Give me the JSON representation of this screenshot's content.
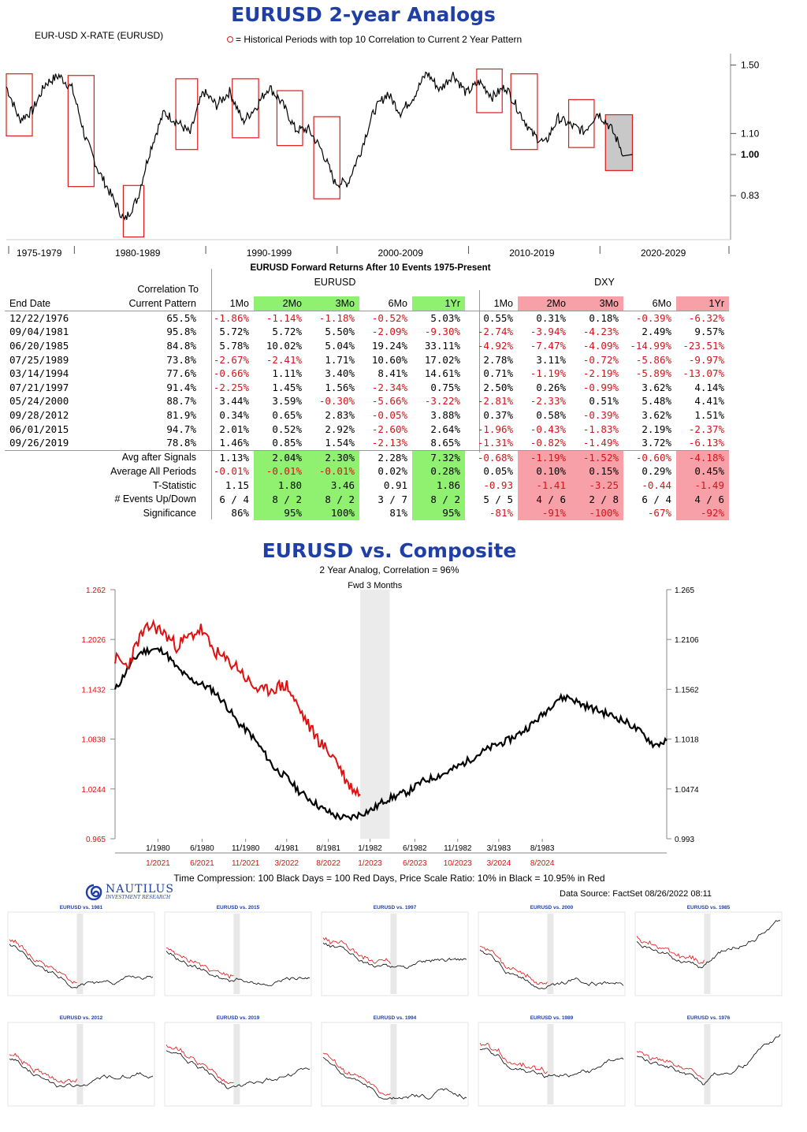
{
  "top_chart": {
    "title": "EURUSD 2-year Analogs",
    "series_label": "EUR-USD X-RATE (EURUSD)",
    "legend_text": "= Historical Periods with top 10 Correlation to Current 2 Year Pattern",
    "colors": {
      "title": "#1f3fa6",
      "box": "#e01a1a",
      "current_box_fill": "#c8c8c8"
    },
    "y_ticks": [
      "1.50",
      "1.10",
      "1.00",
      "0.83"
    ],
    "x_labels": [
      "1975-1979",
      "1980-1989",
      "1990-1999",
      "2000-2009",
      "2010-2019",
      "2020-2029"
    ]
  },
  "table": {
    "title": "EURUSD Forward Returns After 10 Events 1975-Present",
    "group1": "EURUSD",
    "group2": "DXY",
    "corr_header_1": "Correlation To",
    "corr_header_2": "Current Pattern",
    "end_date_header": "End Date",
    "periods": [
      "1Mo",
      "2Mo",
      "3Mo",
      "6Mo",
      "1Yr",
      "1Mo",
      "2Mo",
      "3Mo",
      "6Mo",
      "1Yr"
    ],
    "rows": [
      [
        "12/22/1976",
        "65.5%",
        "-1.86%",
        "-1.14%",
        "-1.18%",
        "-0.52%",
        "5.03%",
        "0.55%",
        "0.31%",
        "0.18%",
        "-0.39%",
        "-6.32%"
      ],
      [
        "09/04/1981",
        "95.8%",
        "5.72%",
        "5.72%",
        "5.50%",
        "-2.09%",
        "-9.30%",
        "-2.74%",
        "-3.94%",
        "-4.23%",
        "2.49%",
        "9.57%"
      ],
      [
        "06/20/1985",
        "84.8%",
        "5.78%",
        "10.02%",
        "5.04%",
        "19.24%",
        "33.11%",
        "-4.92%",
        "-7.47%",
        "-4.09%",
        "-14.99%",
        "-23.51%"
      ],
      [
        "07/25/1989",
        "73.8%",
        "-2.67%",
        "-2.41%",
        "1.71%",
        "10.60%",
        "17.02%",
        "2.78%",
        "3.11%",
        "-0.72%",
        "-5.86%",
        "-9.97%"
      ],
      [
        "03/14/1994",
        "77.6%",
        "-0.66%",
        "1.11%",
        "3.40%",
        "8.41%",
        "14.61%",
        "0.71%",
        "-1.19%",
        "-2.19%",
        "-5.89%",
        "-13.07%"
      ],
      [
        "07/21/1997",
        "91.4%",
        "-2.25%",
        "1.45%",
        "1.56%",
        "-2.34%",
        "0.75%",
        "2.50%",
        "0.26%",
        "-0.99%",
        "3.62%",
        "4.14%"
      ],
      [
        "05/24/2000",
        "88.7%",
        "3.44%",
        "3.59%",
        "-0.30%",
        "-5.66%",
        "-3.22%",
        "-2.81%",
        "-2.33%",
        "0.51%",
        "5.48%",
        "4.41%"
      ],
      [
        "09/28/2012",
        "81.9%",
        "0.34%",
        "0.65%",
        "2.83%",
        "-0.05%",
        "3.88%",
        "0.37%",
        "0.58%",
        "-0.39%",
        "3.62%",
        "1.51%"
      ],
      [
        "06/01/2015",
        "94.7%",
        "2.01%",
        "0.52%",
        "2.92%",
        "-2.60%",
        "2.64%",
        "-1.96%",
        "-0.43%",
        "-1.83%",
        "2.19%",
        "-2.37%"
      ],
      [
        "09/26/2019",
        "78.8%",
        "1.46%",
        "0.85%",
        "1.54%",
        "-2.13%",
        "8.65%",
        "-1.31%",
        "-0.82%",
        "-1.49%",
        "3.72%",
        "-6.13%"
      ]
    ],
    "summary": [
      {
        "label": "Avg after Signals",
        "values": [
          "1.13%",
          "2.04%",
          "2.30%",
          "2.28%",
          "7.32%",
          "-0.68%",
          "-1.19%",
          "-1.52%",
          "-0.60%",
          "-4.18%"
        ]
      },
      {
        "label": "Average All Periods",
        "values": [
          "-0.01%",
          "-0.01%",
          "-0.01%",
          "0.02%",
          "0.28%",
          "0.05%",
          "0.10%",
          "0.15%",
          "0.29%",
          "0.45%"
        ]
      },
      {
        "label": "T-Statistic",
        "values": [
          "1.15",
          "1.80",
          "3.46",
          "0.91",
          "1.86",
          "-0.93",
          "-1.41",
          "-3.25",
          "-0.44",
          "-1.49"
        ]
      },
      {
        "label": "# Events Up/Down",
        "values": [
          "6 / 4",
          "8 / 2",
          "8 / 2",
          "3 / 7",
          "8 / 2",
          "5 / 5",
          "4 / 6",
          "2 / 8",
          "6 / 4",
          "4 / 6"
        ]
      },
      {
        "label": "Significance",
        "values": [
          "86%",
          "95%",
          "100%",
          "81%",
          "95%",
          "-81%",
          "-91%",
          "-100%",
          "-67%",
          "-92%"
        ]
      }
    ],
    "colors": {
      "green": "#90f070",
      "pink": "#f7a0a8",
      "negative": "#d4141a"
    }
  },
  "composite": {
    "title": "EURUSD vs. Composite",
    "subtitle": "2 Year Analog, Correlation = 96%",
    "fwd_label": "Fwd 3 Months",
    "left_ticks": [
      "1.262",
      "1.2026",
      "1.1432",
      "1.0838",
      "1.0244",
      "0.965"
    ],
    "right_ticks": [
      "1.265",
      "1.2106",
      "1.1562",
      "1.1018",
      "1.0474",
      "0.993"
    ],
    "x_black": [
      "1/1980",
      "6/1980",
      "11/1980",
      "4/1981",
      "8/1981",
      "1/1982",
      "6/1982",
      "11/1982",
      "3/1983",
      "8/1983"
    ],
    "x_red": [
      "1/2021",
      "6/2021",
      "11/2021",
      "3/2022",
      "8/2022",
      "1/2023",
      "6/2023",
      "10/2023",
      "3/2024",
      "8/2024"
    ],
    "footer": "Time Compression: 100 Black Days = 100 Red Days,  Price Scale Ratio: 10% in Black = 10.95% in Red",
    "logo_name": "NAUTILUS",
    "logo_sub": "INVESTMENT RESEARCH",
    "source": "Data Source: FactSet    08/26/2022 08:11"
  },
  "thumbnails": [
    {
      "title": "EURUSD vs. 1981"
    },
    {
      "title": "EURUSD vs. 2015"
    },
    {
      "title": "EURUSD vs. 1997"
    },
    {
      "title": "EURUSD vs. 2000"
    },
    {
      "title": "EURUSD vs. 1985"
    },
    {
      "title": "EURUSD vs. 2012"
    },
    {
      "title": "EURUSD vs. 2019"
    },
    {
      "title": "EURUSD vs. 1994"
    },
    {
      "title": "EURUSD vs. 1989"
    },
    {
      "title": "EURUSD vs. 1976"
    }
  ],
  "chart_data": [
    {
      "type": "line",
      "title": "EURUSD 2-year Analogs",
      "series": [
        {
          "name": "EUR-USD X-RATE (EURUSD)",
          "x": [
            1975,
            1976,
            1977,
            1978,
            1979,
            1980,
            1981,
            1982,
            1983,
            1984,
            1985,
            1986,
            1987,
            1988,
            1989,
            1990,
            1991,
            1992,
            1993,
            1994,
            1995,
            1996,
            1997,
            1998,
            1999,
            2000,
            2001,
            2002,
            2003,
            2004,
            2005,
            2006,
            2007,
            2008,
            2009,
            2010,
            2011,
            2012,
            2013,
            2014,
            2015,
            2016,
            2017,
            2018,
            2019,
            2020,
            2021,
            2022
          ],
          "values": [
            1.36,
            1.17,
            1.22,
            1.38,
            1.43,
            1.35,
            1.08,
            0.93,
            0.83,
            0.74,
            0.82,
            1.03,
            1.21,
            1.16,
            1.1,
            1.33,
            1.25,
            1.33,
            1.16,
            1.24,
            1.36,
            1.26,
            1.12,
            1.12,
            1.02,
            0.88,
            0.88,
            1.02,
            1.22,
            1.32,
            1.21,
            1.3,
            1.45,
            1.34,
            1.44,
            1.32,
            1.39,
            1.3,
            1.36,
            1.22,
            1.1,
            1.05,
            1.18,
            1.14,
            1.11,
            1.21,
            1.13,
            1.0
          ]
        }
      ],
      "y_log_scale": true,
      "highlighted_periods": [
        [
          1975.0,
          1976.98
        ],
        [
          1979.7,
          1981.68
        ],
        [
          1983.9,
          1985.47
        ],
        [
          1987.9,
          1989.56
        ],
        [
          1992.2,
          1994.2
        ],
        [
          1995.6,
          1997.55
        ],
        [
          1998.4,
          2000.39
        ],
        [
          2010.8,
          2012.74
        ],
        [
          2013.4,
          2015.42
        ],
        [
          2017.8,
          2019.74
        ],
        [
          2020.6,
          2022.65
        ]
      ],
      "y_ticks": [
        1.5,
        1.1,
        1.0,
        0.83
      ]
    },
    {
      "type": "line",
      "title": "EURUSD vs. Composite",
      "series": [
        {
          "x": [
            0,
            20,
            40,
            60,
            80,
            100,
            120,
            140,
            160,
            180,
            200,
            220,
            240,
            260,
            280,
            300,
            320,
            340,
            360,
            380,
            400,
            420,
            440,
            460,
            480,
            500,
            520,
            540,
            560,
            580,
            600,
            620,
            640,
            660,
            680,
            700,
            720,
            740,
            760,
            780,
            800,
            820,
            840,
            860,
            880,
            900
          ],
          "values": [
            1.155,
            1.178,
            1.196,
            1.2,
            1.198,
            1.18,
            1.168,
            1.162,
            1.155,
            1.14,
            1.12,
            1.108,
            1.09,
            1.07,
            1.06,
            1.045,
            1.035,
            1.025,
            1.018,
            1.015,
            1.02,
            1.025,
            1.035,
            1.04,
            1.045,
            1.055,
            1.06,
            1.065,
            1.072,
            1.08,
            1.088,
            1.095,
            1.1,
            1.108,
            1.118,
            1.13,
            1.145,
            1.148,
            1.14,
            1.135,
            1.13,
            1.125,
            1.118,
            1.108,
            1.095,
            1.1
          ]
        },
        {
          "x": [
            0,
            20,
            40,
            60,
            80,
            100,
            120,
            140,
            160,
            180,
            200,
            220,
            240,
            260,
            280,
            300,
            320,
            340,
            360,
            380,
            400
          ],
          "values": [
            1.18,
            1.17,
            1.205,
            1.22,
            1.21,
            1.195,
            1.205,
            1.215,
            1.19,
            1.178,
            1.17,
            1.15,
            1.14,
            1.145,
            1.148,
            1.12,
            1.095,
            1.075,
            1.06,
            1.03,
            1.018
          ]
        }
      ],
      "left_axis_range": [
        0.965,
        1.262
      ],
      "right_axis_range": [
        0.993,
        1.265
      ],
      "shaded_window_x": [
        400,
        448
      ]
    }
  ]
}
